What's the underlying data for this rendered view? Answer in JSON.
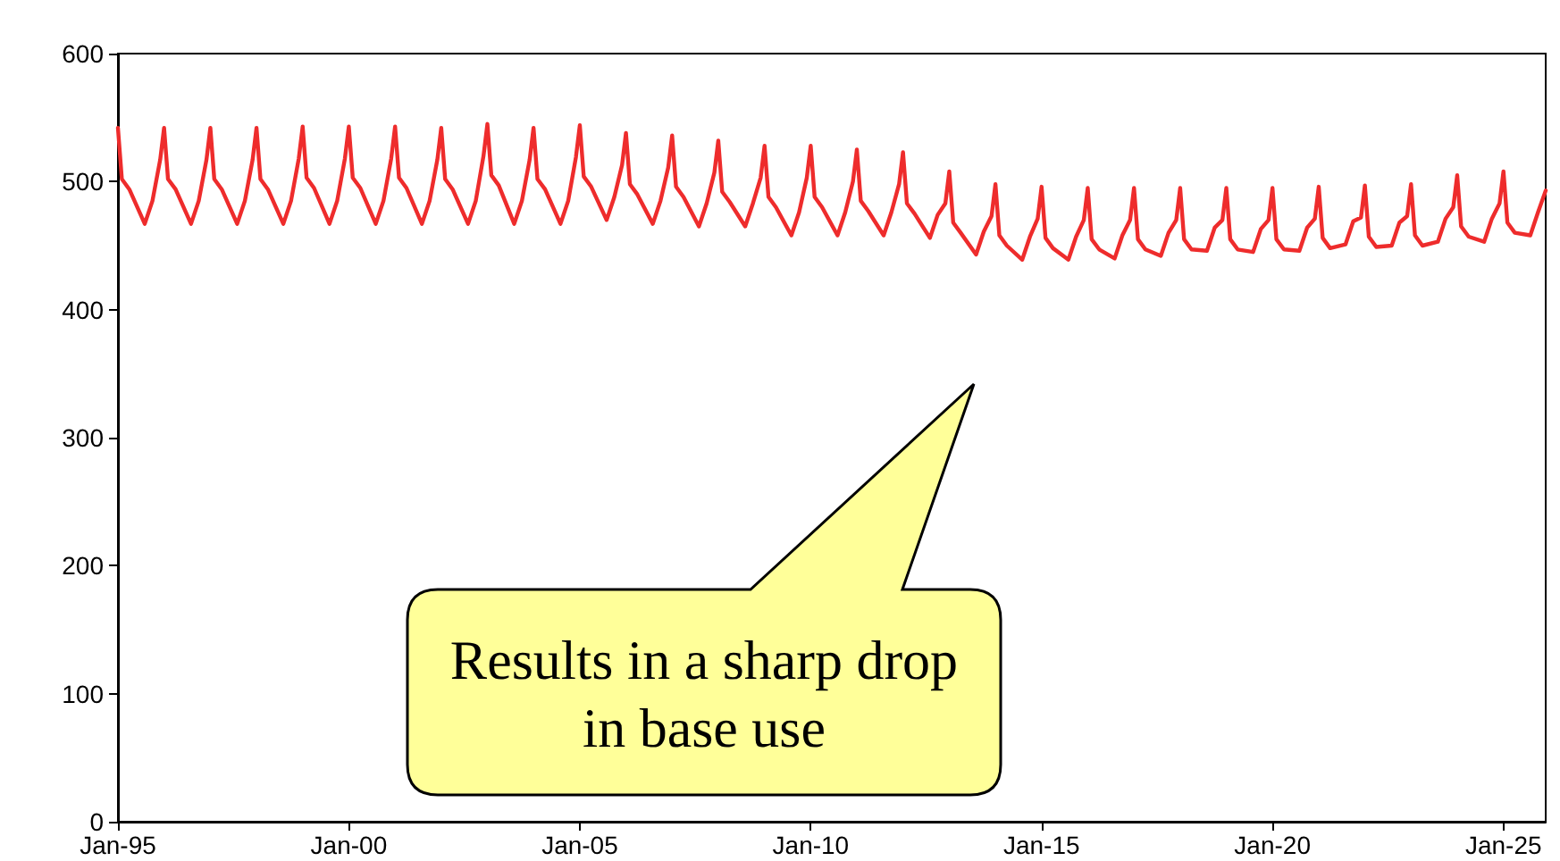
{
  "chart_data": {
    "type": "line",
    "annotations": [
      "Results in a sharp drop in base use"
    ],
    "x": [
      "1995-01",
      "1995-02",
      "1995-04",
      "1995-08",
      "1995-10",
      "1995-12",
      "1996-01",
      "1996-02",
      "1996-04",
      "1996-08",
      "1996-10",
      "1996-12",
      "1997-01",
      "1997-02",
      "1997-04",
      "1997-08",
      "1997-10",
      "1997-12",
      "1998-01",
      "1998-02",
      "1998-04",
      "1998-08",
      "1998-10",
      "1998-12",
      "1999-01",
      "1999-02",
      "1999-04",
      "1999-08",
      "1999-10",
      "1999-12",
      "2000-01",
      "2000-02",
      "2000-04",
      "2000-08",
      "2000-10",
      "2000-12",
      "2001-01",
      "2001-02",
      "2001-04",
      "2001-08",
      "2001-10",
      "2001-12",
      "2002-01",
      "2002-02",
      "2002-04",
      "2002-08",
      "2002-10",
      "2002-12",
      "2003-01",
      "2003-02",
      "2003-04",
      "2003-08",
      "2003-10",
      "2003-12",
      "2004-01",
      "2004-02",
      "2004-04",
      "2004-08",
      "2004-10",
      "2004-12",
      "2005-01",
      "2005-02",
      "2005-04",
      "2005-08",
      "2005-10",
      "2005-12",
      "2006-01",
      "2006-02",
      "2006-04",
      "2006-08",
      "2006-10",
      "2006-12",
      "2007-01",
      "2007-02",
      "2007-04",
      "2007-08",
      "2007-10",
      "2007-12",
      "2008-01",
      "2008-02",
      "2008-04",
      "2008-08",
      "2008-10",
      "2008-12",
      "2009-01",
      "2009-02",
      "2009-04",
      "2009-08",
      "2009-10",
      "2009-12",
      "2010-01",
      "2010-02",
      "2010-04",
      "2010-08",
      "2010-10",
      "2010-12",
      "2011-01",
      "2011-02",
      "2011-04",
      "2011-08",
      "2011-10",
      "2011-12",
      "2012-01",
      "2012-02",
      "2012-04",
      "2012-08",
      "2012-10",
      "2012-12",
      "2013-01",
      "2013-02",
      "2013-04",
      "2013-08",
      "2013-10",
      "2013-12",
      "2014-01",
      "2014-02",
      "2014-04",
      "2014-08",
      "2014-10",
      "2014-12",
      "2015-01",
      "2015-02",
      "2015-04",
      "2015-08",
      "2015-10",
      "2015-12",
      "2016-01",
      "2016-02",
      "2016-04",
      "2016-08",
      "2016-10",
      "2016-12",
      "2017-01",
      "2017-02",
      "2017-04",
      "2017-08",
      "2017-10",
      "2017-12",
      "2018-01",
      "2018-02",
      "2018-04",
      "2018-08",
      "2018-10",
      "2018-12",
      "2019-01",
      "2019-02",
      "2019-04",
      "2019-08",
      "2019-10",
      "2019-12",
      "2020-01",
      "2020-02",
      "2020-04",
      "2020-08",
      "2020-10",
      "2020-12",
      "2021-01",
      "2021-02",
      "2021-04",
      "2021-08",
      "2021-10",
      "2021-12",
      "2022-01",
      "2022-02",
      "2022-04",
      "2022-08",
      "2022-10",
      "2022-12",
      "2023-01",
      "2023-02",
      "2023-04",
      "2023-08",
      "2023-10",
      "2023-12",
      "2024-01",
      "2024-02",
      "2024-04",
      "2024-08",
      "2024-10",
      "2024-12",
      "2025-01",
      "2025-02",
      "2025-04",
      "2025-08",
      "2025-10",
      "2025-12"
    ],
    "series": [
      {
        "color": "#ee2c2c",
        "values": [
          542,
          502,
          494,
          467,
          485,
          517,
          542,
          502,
          494,
          467,
          485,
          517,
          542,
          502,
          494,
          467,
          485,
          517,
          542,
          502,
          494,
          467,
          485,
          518,
          543,
          503,
          495,
          467,
          485,
          518,
          543,
          503,
          495,
          467,
          485,
          518,
          543,
          503,
          495,
          467,
          485,
          517,
          542,
          502,
          494,
          467,
          485,
          520,
          545,
          505,
          497,
          467,
          485,
          517,
          542,
          502,
          494,
          467,
          485,
          519,
          544,
          504,
          496,
          470,
          488,
          513,
          538,
          498,
          490,
          467,
          485,
          511,
          536,
          496,
          488,
          465,
          483,
          507,
          532,
          492,
          484,
          465,
          483,
          503,
          528,
          488,
          480,
          458,
          476,
          503,
          528,
          488,
          480,
          458,
          476,
          500,
          525,
          485,
          477,
          458,
          476,
          498,
          523,
          483,
          475,
          456,
          474,
          483,
          508,
          468,
          460,
          443,
          461,
          473,
          498,
          458,
          450,
          439,
          457,
          471,
          496,
          456,
          448,
          439,
          457,
          470,
          495,
          455,
          447,
          440,
          458,
          470,
          495,
          455,
          447,
          442,
          460,
          470,
          495,
          455,
          447,
          446,
          464,
          470,
          495,
          455,
          447,
          445,
          463,
          470,
          495,
          455,
          447,
          446,
          464,
          471,
          496,
          456,
          448,
          451,
          469,
          472,
          497,
          457,
          449,
          450,
          468,
          473,
          498,
          458,
          450,
          453,
          471,
          480,
          505,
          465,
          457,
          453,
          471,
          483,
          508,
          468,
          460,
          458,
          476,
          493
        ]
      }
    ],
    "xlim": [
      "1995-01",
      "2025-12"
    ],
    "xticks": [
      {
        "value": "1995-01",
        "label": "Jan-95"
      },
      {
        "value": "2000-01",
        "label": "Jan-00"
      },
      {
        "value": "2005-01",
        "label": "Jan-05"
      },
      {
        "value": "2010-01",
        "label": "Jan-10"
      },
      {
        "value": "2015-01",
        "label": "Jan-15"
      },
      {
        "value": "2020-01",
        "label": "Jan-20"
      },
      {
        "value": "2025-01",
        "label": "Jan-25"
      }
    ],
    "ylim": [
      0,
      600
    ],
    "yticks": [
      0,
      100,
      200,
      300,
      400,
      500,
      600
    ],
    "marker": "none",
    "line_style": "solid"
  }
}
